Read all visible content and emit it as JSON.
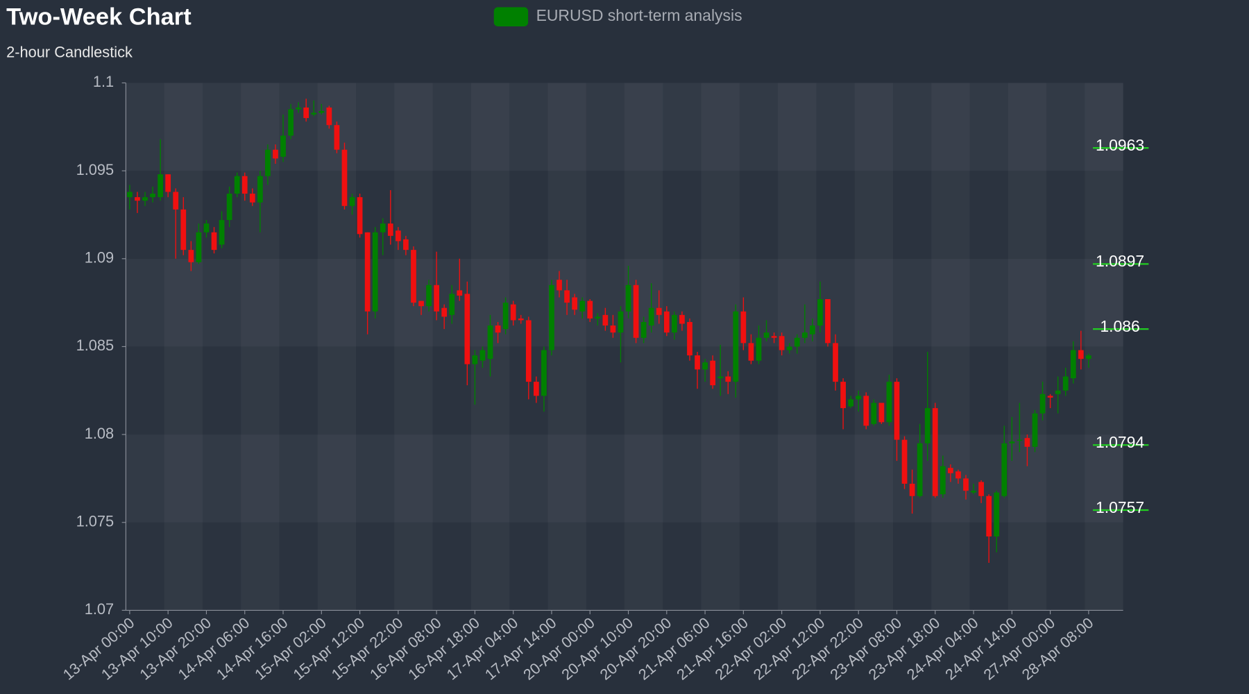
{
  "chart_data": {
    "type": "candlestick",
    "title": "Two-Week Chart",
    "subtitle": "2-hour Candlestick",
    "categories": [
      "13-Apr 00:00",
      null,
      null,
      null,
      null,
      "13-Apr 10:00",
      null,
      null,
      null,
      null,
      "13-Apr 20:00",
      null,
      null,
      null,
      null,
      "14-Apr 06:00",
      null,
      null,
      null,
      null,
      "14-Apr 16:00",
      null,
      null,
      null,
      null,
      "15-Apr 02:00",
      null,
      null,
      null,
      null,
      "15-Apr 12:00",
      null,
      null,
      null,
      null,
      "15-Apr 22:00",
      null,
      null,
      null,
      null,
      "16-Apr 08:00",
      null,
      null,
      null,
      null,
      "16-Apr 18:00",
      null,
      null,
      null,
      null,
      "17-Apr 04:00",
      null,
      null,
      null,
      null,
      "17-Apr 14:00",
      null,
      null,
      null,
      null,
      "20-Apr 00:00",
      null,
      null,
      null,
      null,
      "20-Apr 10:00",
      null,
      null,
      null,
      null,
      "20-Apr 20:00",
      null,
      null,
      null,
      null,
      "21-Apr 06:00",
      null,
      null,
      null,
      null,
      "21-Apr 16:00",
      null,
      null,
      null,
      null,
      "22-Apr 02:00",
      null,
      null,
      null,
      null,
      "22-Apr 12:00",
      null,
      null,
      null,
      null,
      "22-Apr 22:00",
      null,
      null,
      null,
      null,
      "23-Apr 08:00",
      null,
      null,
      null,
      null,
      "23-Apr 18:00",
      null,
      null,
      null,
      null,
      "24-Apr 04:00",
      null,
      null,
      null,
      null,
      "24-Apr 14:00",
      null,
      null,
      null,
      null,
      "27-Apr 00:00",
      null,
      null,
      null,
      null,
      "28-Apr 08:00"
    ],
    "series": [
      {
        "name": "EURUSD short-term analysis",
        "color": "#008000",
        "up_color": "#008000",
        "down_color": "#f01010",
        "values": [
          [
            1.0935,
            1.0938,
            1.0928,
            1.0942
          ],
          [
            1.0935,
            1.0933,
            1.0926,
            1.0938
          ],
          [
            1.0933,
            1.0935,
            1.093,
            1.0938
          ],
          [
            1.0935,
            1.0937,
            1.0932,
            1.0941
          ],
          [
            1.0935,
            1.0948,
            1.0933,
            1.0968
          ],
          [
            1.0948,
            1.0938,
            1.0935,
            1.0948
          ],
          [
            1.0938,
            1.0928,
            1.09,
            1.094
          ],
          [
            1.0928,
            1.0905,
            1.0902,
            1.0935
          ],
          [
            1.0905,
            1.0898,
            1.0893,
            1.091
          ],
          [
            1.0898,
            1.0915,
            1.0897,
            1.092
          ],
          [
            1.0915,
            1.092,
            1.0912,
            1.0922
          ],
          [
            1.0915,
            1.0905,
            1.0903,
            1.0918
          ],
          [
            1.0908,
            1.0922,
            1.0906,
            1.0927
          ],
          [
            1.0922,
            1.0937,
            1.0918,
            1.0941
          ],
          [
            1.0937,
            1.0947,
            1.0935,
            1.0949
          ],
          [
            1.0947,
            1.0937,
            1.0933,
            1.0949
          ],
          [
            1.0937,
            1.0932,
            1.093,
            1.094
          ],
          [
            1.0932,
            1.0947,
            1.0915,
            1.095
          ],
          [
            1.0947,
            1.0962,
            1.0942,
            1.0965
          ],
          [
            1.0962,
            1.0957,
            1.0954,
            1.0965
          ],
          [
            1.0958,
            1.097,
            1.0955,
            1.0982
          ],
          [
            1.097,
            1.0985,
            1.0968,
            1.0988
          ],
          [
            1.0985,
            1.0986,
            1.0983,
            1.0989
          ],
          [
            1.0986,
            1.098,
            1.0978,
            1.0991
          ],
          [
            1.0982,
            1.0983,
            1.0981,
            1.099
          ],
          [
            1.0983,
            1.0984,
            1.0982,
            1.0988
          ],
          [
            1.0986,
            1.0976,
            1.0974,
            1.0987
          ],
          [
            1.0976,
            1.0962,
            1.096,
            1.0978
          ],
          [
            1.0962,
            1.093,
            1.0928,
            1.0966
          ],
          [
            1.093,
            1.0935,
            1.0925,
            1.0937
          ],
          [
            1.0935,
            1.0914,
            1.0912,
            1.0937
          ],
          [
            1.0915,
            1.087,
            1.0857,
            1.0915
          ],
          [
            1.087,
            1.0915,
            1.0866,
            1.0918
          ],
          [
            1.0915,
            1.092,
            1.0902,
            1.0923
          ],
          [
            1.092,
            1.0913,
            1.0908,
            1.0939
          ],
          [
            1.0916,
            1.091,
            1.0905,
            1.0918
          ],
          [
            1.0911,
            1.0905,
            1.0902,
            1.0913
          ],
          [
            1.0905,
            1.0875,
            1.0873,
            1.0907
          ],
          [
            1.0876,
            1.0873,
            1.0868,
            1.0876
          ],
          [
            1.0873,
            1.0885,
            1.087,
            1.0888
          ],
          [
            1.0885,
            1.087,
            1.0865,
            1.0904
          ],
          [
            1.0872,
            1.0867,
            1.086,
            1.0874
          ],
          [
            1.0868,
            1.088,
            1.0863,
            1.0885
          ],
          [
            1.0882,
            1.0879,
            1.0876,
            1.09
          ],
          [
            1.088,
            1.084,
            1.0828,
            1.0887
          ],
          [
            1.084,
            1.0845,
            1.0817,
            1.0848
          ],
          [
            1.0842,
            1.0848,
            1.0838,
            1.085
          ],
          [
            1.0843,
            1.0862,
            1.0833,
            1.0868
          ],
          [
            1.0862,
            1.0858,
            1.0852,
            1.0864
          ],
          [
            1.086,
            1.0875,
            1.0857,
            1.0878
          ],
          [
            1.0874,
            1.0865,
            1.0862,
            1.0876
          ],
          [
            1.0866,
            1.0865,
            1.0863,
            1.0868
          ],
          [
            1.0865,
            1.083,
            1.082,
            1.0867
          ],
          [
            1.083,
            1.0822,
            1.0818,
            1.0833
          ],
          [
            1.0822,
            1.0848,
            1.0813,
            1.085
          ],
          [
            1.0848,
            1.0885,
            1.0845,
            1.0888
          ],
          [
            1.0888,
            1.0882,
            1.0878,
            1.0893
          ],
          [
            1.0882,
            1.0875,
            1.0868,
            1.0888
          ],
          [
            1.0878,
            1.0871,
            1.0868,
            1.088
          ],
          [
            1.087,
            1.0876,
            1.0866,
            1.0878
          ],
          [
            1.0876,
            1.0866,
            1.0864,
            1.0877
          ],
          [
            1.0866,
            1.0867,
            1.0862,
            1.0869
          ],
          [
            1.0868,
            1.0862,
            1.0859,
            1.0872
          ],
          [
            1.0862,
            1.0858,
            1.0855,
            1.0868
          ],
          [
            1.0858,
            1.087,
            1.0841,
            1.0873
          ],
          [
            1.087,
            1.0885,
            1.0866,
            1.0896
          ],
          [
            1.0885,
            1.0855,
            1.0852,
            1.0888
          ],
          [
            1.0855,
            1.0864,
            1.0852,
            1.0867
          ],
          [
            1.0862,
            1.0872,
            1.0858,
            1.0886
          ],
          [
            1.0872,
            1.0868,
            1.0863,
            1.0882
          ],
          [
            1.087,
            1.0858,
            1.0856,
            1.0873
          ],
          [
            1.0858,
            1.0868,
            1.0854,
            1.087
          ],
          [
            1.0868,
            1.0863,
            1.0859,
            1.087
          ],
          [
            1.0864,
            1.0845,
            1.0842,
            1.0866
          ],
          [
            1.0845,
            1.0837,
            1.0826,
            1.0847
          ],
          [
            1.0837,
            1.0841,
            1.083,
            1.0843
          ],
          [
            1.0842,
            1.0828,
            1.0826,
            1.0845
          ],
          [
            1.0832,
            1.0833,
            1.0822,
            1.0851
          ],
          [
            1.0833,
            1.083,
            1.0823,
            1.0836
          ],
          [
            1.083,
            1.087,
            1.0821,
            1.0874
          ],
          [
            1.087,
            1.0852,
            1.0848,
            1.0878
          ],
          [
            1.0852,
            1.0842,
            1.084,
            1.0857
          ],
          [
            1.0842,
            1.0855,
            1.084,
            1.0862
          ],
          [
            1.0855,
            1.0858,
            1.0853,
            1.0865
          ],
          [
            1.0856,
            1.0855,
            1.0852,
            1.0858
          ],
          [
            1.0856,
            1.0848,
            1.0845,
            1.0858
          ],
          [
            1.0848,
            1.085,
            1.0846,
            1.0852
          ],
          [
            1.085,
            1.0855,
            1.0846,
            1.0857
          ],
          [
            1.0855,
            1.0858,
            1.0852,
            1.0874
          ],
          [
            1.0857,
            1.0862,
            1.0853,
            1.0866
          ],
          [
            1.0862,
            1.0877,
            1.0858,
            1.0887
          ],
          [
            1.0877,
            1.0852,
            1.085,
            1.0877
          ],
          [
            1.0852,
            1.083,
            1.0825,
            1.0857
          ],
          [
            1.083,
            1.0815,
            1.0803,
            1.0832
          ],
          [
            1.0816,
            1.082,
            1.0815,
            1.0822
          ],
          [
            1.082,
            1.0822,
            1.0813,
            1.0825
          ],
          [
            1.0822,
            1.0805,
            1.0803,
            1.0824
          ],
          [
            1.0806,
            1.0818,
            1.0805,
            1.082
          ],
          [
            1.0818,
            1.0807,
            1.0806,
            1.0818
          ],
          [
            1.0807,
            1.083,
            1.0805,
            1.0834
          ],
          [
            1.083,
            1.0797,
            1.0785,
            1.0832
          ],
          [
            1.0797,
            1.0772,
            1.0769,
            1.0799
          ],
          [
            1.0772,
            1.0765,
            1.0755,
            1.078
          ],
          [
            1.0765,
            1.0795,
            1.0764,
            1.0806
          ],
          [
            1.0795,
            1.0815,
            1.0785,
            1.0847
          ],
          [
            1.0815,
            1.0765,
            1.0764,
            1.0818
          ],
          [
            1.0766,
            1.0782,
            1.0764,
            1.0788
          ],
          [
            1.0781,
            1.0778,
            1.0773,
            1.0783
          ],
          [
            1.0779,
            1.0775,
            1.0772,
            1.078
          ],
          [
            1.0775,
            1.0768,
            1.0763,
            1.0777
          ],
          [
            1.0767,
            1.0768,
            1.0766,
            1.0772
          ],
          [
            1.0773,
            1.0765,
            1.0761,
            1.0774
          ],
          [
            1.0765,
            1.0742,
            1.0727,
            1.0766
          ],
          [
            1.0742,
            1.0767,
            1.0733,
            1.0768
          ],
          [
            1.0765,
            1.0795,
            1.0764,
            1.0805
          ],
          [
            1.0795,
            1.0796,
            1.0785,
            1.081
          ],
          [
            1.0797,
            1.0797,
            1.079,
            1.0818
          ],
          [
            1.0798,
            1.0793,
            1.0782,
            1.08
          ],
          [
            1.0793,
            1.0812,
            1.079,
            1.0814
          ],
          [
            1.0812,
            1.0823,
            1.0808,
            1.083
          ],
          [
            1.0822,
            1.0821,
            1.0815,
            1.0823
          ],
          [
            1.0823,
            1.0825,
            1.0812,
            1.0833
          ],
          [
            1.0825,
            1.0833,
            1.0822,
            1.0838
          ],
          [
            1.0832,
            1.0848,
            1.0829,
            1.0853
          ],
          [
            1.0848,
            1.0843,
            1.0837,
            1.0859
          ],
          [
            1.0843,
            1.0845,
            1.0838,
            1.0846
          ]
        ]
      }
    ],
    "ylim": [
      1.07,
      1.1
    ],
    "yticks": [
      1.07,
      1.075,
      1.08,
      1.085,
      1.09,
      1.095,
      1.1
    ],
    "mark_lines": [
      1.0963,
      1.0897,
      1.086,
      1.0794,
      1.0757
    ],
    "mark_line_color": "#22cc22",
    "legend": "top"
  }
}
